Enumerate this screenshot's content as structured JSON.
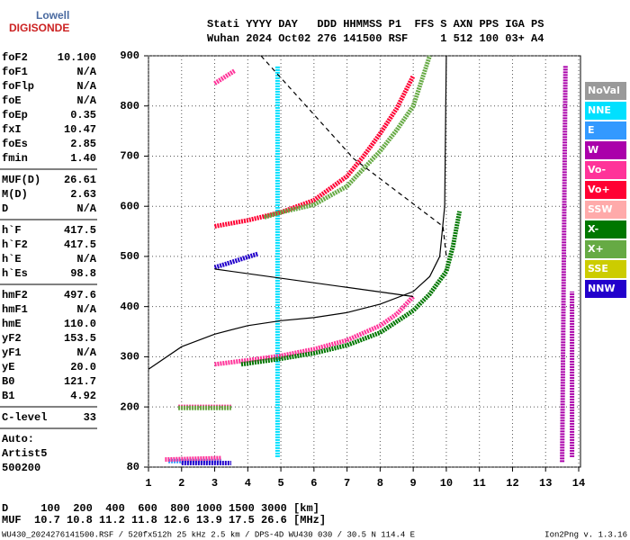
{
  "logo": {
    "top": "Lowell",
    "bottom": "DIGISONDE"
  },
  "header": [
    "Stati YYYY DAY   DDD HHMMSS P1  FFS S AXN PPS IGA PS",
    "Wuhan 2024 Oct02 276 141500 RSF     1 512 100 03+ A4"
  ],
  "panel": [
    [
      [
        "foF2",
        "10.100"
      ],
      [
        "foF1",
        "N/A"
      ],
      [
        "foFlp",
        "N/A"
      ],
      [
        "foE",
        "N/A"
      ],
      [
        "foEp",
        "0.35"
      ],
      [
        "fxI",
        "10.47"
      ],
      [
        "foEs",
        "2.85"
      ],
      [
        "fmin",
        "1.40"
      ]
    ],
    [
      [
        "MUF(D)",
        "26.61"
      ],
      [
        "M(D)",
        "2.63"
      ],
      [
        "D",
        "N/A"
      ]
    ],
    [
      [
        "h`F",
        "417.5"
      ],
      [
        "h`F2",
        "417.5"
      ],
      [
        "h`E",
        "N/A"
      ],
      [
        "h`Es",
        "98.8"
      ]
    ],
    [
      [
        "hmF2",
        "497.6"
      ],
      [
        "hmF1",
        "N/A"
      ],
      [
        "hmE",
        "110.0"
      ],
      [
        "yF2",
        "153.5"
      ],
      [
        "yF1",
        "N/A"
      ],
      [
        "yE",
        "20.0"
      ],
      [
        "B0",
        "121.7"
      ],
      [
        "B1",
        "4.92"
      ]
    ],
    [
      [
        "C-level",
        "33"
      ]
    ],
    [
      [
        "Auto:"
      ],
      [
        "Artist5"
      ],
      [
        "500200"
      ]
    ]
  ],
  "chart_data": {
    "type": "scatter",
    "xlim": [
      1,
      14
    ],
    "ylim": [
      80,
      900
    ],
    "xticks": [
      1,
      2,
      3,
      4,
      5,
      6,
      7,
      8,
      9,
      10,
      11,
      12,
      13,
      14
    ],
    "yticks": [
      80,
      200,
      300,
      400,
      500,
      600,
      700,
      800,
      900
    ],
    "grid": true,
    "series": [
      {
        "name": "NoVal",
        "color": "#9a9a9a",
        "x": [],
        "y": []
      },
      {
        "name": "NNE",
        "color": "#00e0ff",
        "x": [
          4.9,
          4.9
        ],
        "y": [
          100,
          880
        ]
      },
      {
        "name": "E",
        "color": "#3399ff",
        "x": [
          1.6,
          3.2
        ],
        "y": [
          92,
          92
        ]
      },
      {
        "name": "W",
        "color": "#aa00aa",
        "x": [
          13.5,
          13.6,
          null,
          13.8,
          13.8
        ],
        "y": [
          90,
          880,
          null,
          100,
          430
        ]
      },
      {
        "name": "Vo-",
        "color": "#ff3399",
        "x": [
          3,
          4,
          5,
          6,
          7,
          8,
          8.5,
          9,
          null,
          3,
          3.6,
          null,
          1.9,
          3.5,
          null,
          1.5,
          3.2
        ],
        "y": [
          285,
          293,
          302,
          315,
          333,
          362,
          385,
          420,
          null,
          845,
          870,
          null,
          200,
          200,
          null,
          95,
          98
        ]
      },
      {
        "name": "Vo+",
        "color": "#ff0033",
        "x": [
          3,
          4,
          5,
          6,
          7,
          7.5,
          8,
          8.5,
          9
        ],
        "y": [
          560,
          572,
          588,
          612,
          660,
          700,
          745,
          795,
          860
        ]
      },
      {
        "name": "SSW",
        "color": "#ffaaaa",
        "x": [],
        "y": []
      },
      {
        "name": "X-",
        "color": "#007700",
        "x": [
          3.8,
          5,
          6,
          7,
          8,
          9,
          9.5,
          10,
          10.2,
          10.4
        ],
        "y": [
          285,
          296,
          307,
          323,
          348,
          392,
          425,
          470,
          520,
          590
        ]
      },
      {
        "name": "X+",
        "color": "#66aa44",
        "x": [
          4.5,
          5,
          6,
          7,
          7.5,
          8,
          8.5,
          9,
          9.5,
          null,
          1.9,
          3.5
        ],
        "y": [
          578,
          588,
          603,
          640,
          675,
          710,
          752,
          800,
          900,
          null,
          198,
          198
        ]
      },
      {
        "name": "SSE",
        "color": "#cccc00",
        "x": [],
        "y": []
      },
      {
        "name": "NNW",
        "color": "#2200cc",
        "x": [
          2,
          3.5,
          null,
          3,
          4.3
        ],
        "y": [
          88,
          88,
          null,
          478,
          505
        ]
      }
    ],
    "curves": [
      {
        "x": [
          1,
          2,
          3,
          4,
          5,
          6,
          7,
          8,
          9,
          9.5,
          9.8,
          9.95,
          10
        ],
        "y": [
          275,
          320,
          345,
          362,
          372,
          378,
          388,
          405,
          430,
          460,
          500,
          600,
          900
        ],
        "dash": false
      },
      {
        "x": [
          3,
          9
        ],
        "y": [
          475,
          420
        ],
        "dash": false
      },
      {
        "x": [
          4.4,
          7.2,
          9.9,
          10
        ],
        "y": [
          900,
          695,
          560,
          500
        ],
        "dash": true
      }
    ]
  },
  "bottom": [
    "D     100  200  400  600  800 1000 1500 3000 [km]",
    "MUF  10.7 10.8 11.2 11.8 12.6 13.9 17.5 26.6 [MHz]"
  ],
  "footer": {
    "left": "WU430_2024276141500.RSF / 520fx512h 25 kHz 2.5 km / DPS-4D WU430 030 / 30.5 N 114.4 E",
    "right": "Ion2Png v. 1.3.16"
  }
}
